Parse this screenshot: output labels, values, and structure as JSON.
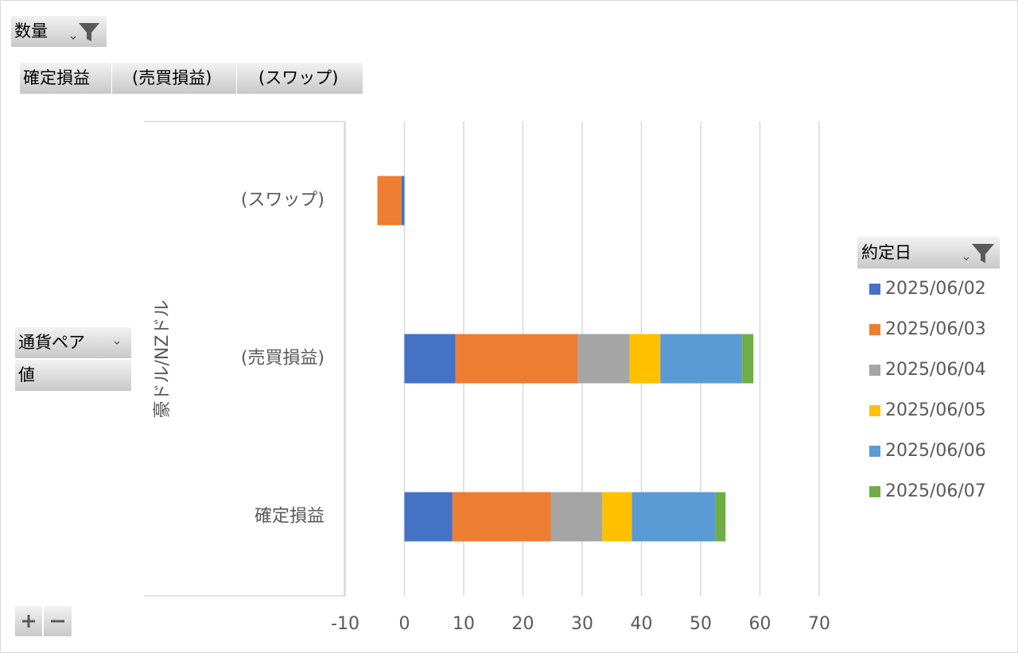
{
  "pivot_fields": {
    "filter": "数量",
    "value_fields": [
      "確定損益",
      "(売買損益)",
      "(スワップ)"
    ],
    "rows": [
      "通貨ペア",
      "値"
    ],
    "legend_field": "約定日"
  },
  "chart_data": {
    "type": "bar",
    "orientation": "horizontal",
    "stacked": true,
    "categories": [
      "(スワップ)",
      "(売買損益)",
      "確定損益"
    ],
    "group_label": "豪ドル/NZドル",
    "series": [
      {
        "name": "2025/06/02",
        "color": "#4472c4",
        "values": [
          -0.5,
          8.6,
          8.1
        ]
      },
      {
        "name": "2025/06/03",
        "color": "#ed7d31",
        "values": [
          -4.0,
          20.7,
          16.6
        ]
      },
      {
        "name": "2025/06/04",
        "color": "#a5a5a5",
        "values": [
          0,
          8.7,
          8.7
        ]
      },
      {
        "name": "2025/06/05",
        "color": "#ffc000",
        "values": [
          -0.1,
          5.2,
          5.0
        ]
      },
      {
        "name": "2025/06/06",
        "color": "#5b9bd5",
        "values": [
          0,
          13.8,
          14.1
        ]
      },
      {
        "name": "2025/06/07",
        "color": "#70ad47",
        "values": [
          0,
          1.9,
          1.7
        ]
      }
    ],
    "xlim": [
      -10,
      70
    ],
    "xticks": [
      -10,
      0,
      10,
      20,
      30,
      40,
      50,
      60,
      70
    ],
    "grid": true
  }
}
